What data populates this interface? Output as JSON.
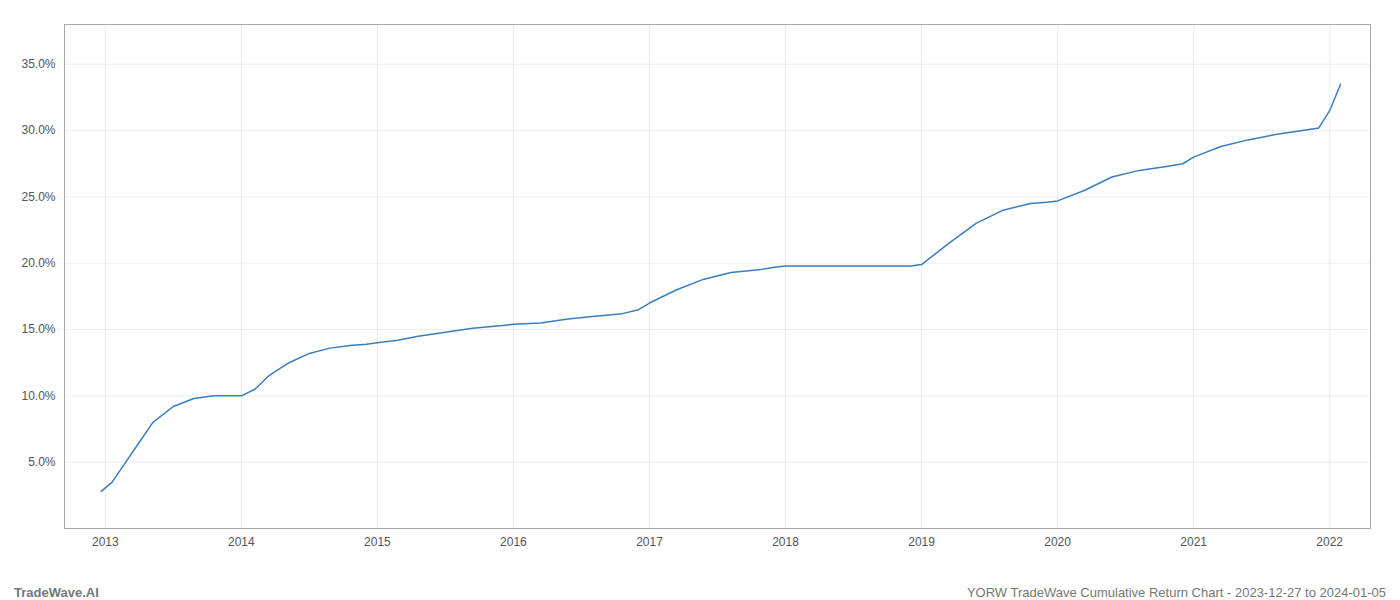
{
  "chart_data": {
    "type": "line",
    "title": "YORW TradeWave Cumulative Return Chart - 2023-12-27 to 2024-01-05",
    "annotations": [
      "TradeWave.AI"
    ],
    "color": "#3a7ebf",
    "grid": true,
    "x": [
      2012.97,
      2013.05,
      2013.15,
      2013.25,
      2013.35,
      2013.5,
      2013.65,
      2013.8,
      2013.92,
      2014.0,
      2014.1,
      2014.2,
      2014.35,
      2014.5,
      2014.65,
      2014.8,
      2014.92,
      2015.0,
      2015.15,
      2015.3,
      2015.5,
      2015.7,
      2015.92,
      2016.0,
      2016.2,
      2016.4,
      2016.6,
      2016.8,
      2016.92,
      2017.0,
      2017.2,
      2017.4,
      2017.6,
      2017.8,
      2017.92,
      2018.0,
      2018.2,
      2018.4,
      2018.6,
      2018.8,
      2018.92,
      2019.0,
      2019.2,
      2019.4,
      2019.6,
      2019.8,
      2019.92,
      2020.0,
      2020.2,
      2020.4,
      2020.6,
      2020.8,
      2020.92,
      2021.0,
      2021.2,
      2021.4,
      2021.6,
      2021.8,
      2021.92,
      2022.0,
      2022.08
    ],
    "values": [
      2.8,
      3.5,
      5.0,
      6.5,
      8.0,
      9.2,
      9.8,
      10.0,
      10.0,
      10.0,
      10.5,
      11.5,
      12.5,
      13.2,
      13.6,
      13.8,
      13.9,
      14.0,
      14.2,
      14.5,
      14.8,
      15.1,
      15.3,
      15.4,
      15.5,
      15.8,
      16.0,
      16.2,
      16.5,
      17.0,
      18.0,
      18.8,
      19.3,
      19.5,
      19.7,
      19.8,
      19.8,
      19.8,
      19.8,
      19.8,
      19.8,
      19.9,
      21.5,
      23.0,
      24.0,
      24.5,
      24.6,
      24.7,
      25.5,
      26.5,
      27.0,
      27.3,
      27.5,
      28.0,
      28.8,
      29.3,
      29.7,
      30.0,
      30.2,
      31.5,
      33.5
    ],
    "xlim": [
      2012.7,
      2022.3
    ],
    "xticks": [
      2013,
      2014,
      2015,
      2016,
      2017,
      2018,
      2019,
      2020,
      2021,
      2022
    ],
    "ylim": [
      0.0,
      38.0
    ],
    "yticks": [
      {
        "value": 5.0,
        "label": "5.0%"
      },
      {
        "value": 10.0,
        "label": "10.0%"
      },
      {
        "value": 15.0,
        "label": "15.0%"
      },
      {
        "value": 20.0,
        "label": "20.0%"
      },
      {
        "value": 25.0,
        "label": "25.0%"
      },
      {
        "value": 30.0,
        "label": "30.0%"
      },
      {
        "value": 35.0,
        "label": "35.0%"
      }
    ]
  }
}
